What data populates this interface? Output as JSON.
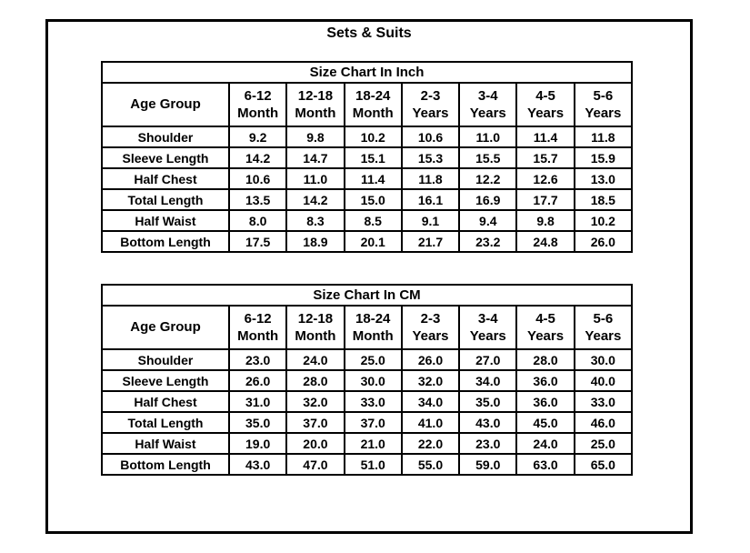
{
  "page_title": "Sets & Suits",
  "colors": {
    "text": "#000000",
    "border": "#000000",
    "background": "#ffffff"
  },
  "tables": [
    {
      "id": "inch",
      "title": "Size Chart In Inch",
      "header_col": "Age Group",
      "columns": [
        [
          "6-12",
          "Month"
        ],
        [
          "12-18",
          "Month"
        ],
        [
          "18-24",
          "Month"
        ],
        [
          "2-3",
          "Years"
        ],
        [
          "3-4",
          "Years"
        ],
        [
          "4-5",
          "Years"
        ],
        [
          "5-6",
          "Years"
        ]
      ],
      "rows": [
        {
          "label": "Shoulder",
          "values": [
            "9.2",
            "9.8",
            "10.2",
            "10.6",
            "11.0",
            "11.4",
            "11.8"
          ]
        },
        {
          "label": "Sleeve Length",
          "values": [
            "14.2",
            "14.7",
            "15.1",
            "15.3",
            "15.5",
            "15.7",
            "15.9"
          ]
        },
        {
          "label": "Half Chest",
          "values": [
            "10.6",
            "11.0",
            "11.4",
            "11.8",
            "12.2",
            "12.6",
            "13.0"
          ]
        },
        {
          "label": "Total Length",
          "values": [
            "13.5",
            "14.2",
            "15.0",
            "16.1",
            "16.9",
            "17.7",
            "18.5"
          ]
        },
        {
          "label": "Half Waist",
          "values": [
            "8.0",
            "8.3",
            "8.5",
            "9.1",
            "9.4",
            "9.8",
            "10.2"
          ]
        },
        {
          "label": "Bottom Length",
          "values": [
            "17.5",
            "18.9",
            "20.1",
            "21.7",
            "23.2",
            "24.8",
            "26.0"
          ]
        }
      ]
    },
    {
      "id": "cm",
      "title": "Size Chart In CM",
      "header_col": "Age Group",
      "columns": [
        [
          "6-12",
          "Month"
        ],
        [
          "12-18",
          "Month"
        ],
        [
          "18-24",
          "Month"
        ],
        [
          "2-3",
          "Years"
        ],
        [
          "3-4",
          "Years"
        ],
        [
          "4-5",
          "Years"
        ],
        [
          "5-6",
          "Years"
        ]
      ],
      "rows": [
        {
          "label": "Shoulder",
          "values": [
            "23.0",
            "24.0",
            "25.0",
            "26.0",
            "27.0",
            "28.0",
            "30.0"
          ]
        },
        {
          "label": "Sleeve Length",
          "values": [
            "26.0",
            "28.0",
            "30.0",
            "32.0",
            "34.0",
            "36.0",
            "40.0"
          ]
        },
        {
          "label": "Half Chest",
          "values": [
            "31.0",
            "32.0",
            "33.0",
            "34.0",
            "35.0",
            "36.0",
            "33.0"
          ]
        },
        {
          "label": "Total Length",
          "values": [
            "35.0",
            "37.0",
            "37.0",
            "41.0",
            "43.0",
            "45.0",
            "46.0"
          ]
        },
        {
          "label": "Half Waist",
          "values": [
            "19.0",
            "20.0",
            "21.0",
            "22.0",
            "23.0",
            "24.0",
            "25.0"
          ]
        },
        {
          "label": "Bottom Length",
          "values": [
            "43.0",
            "47.0",
            "51.0",
            "55.0",
            "59.0",
            "63.0",
            "65.0"
          ]
        }
      ]
    }
  ]
}
